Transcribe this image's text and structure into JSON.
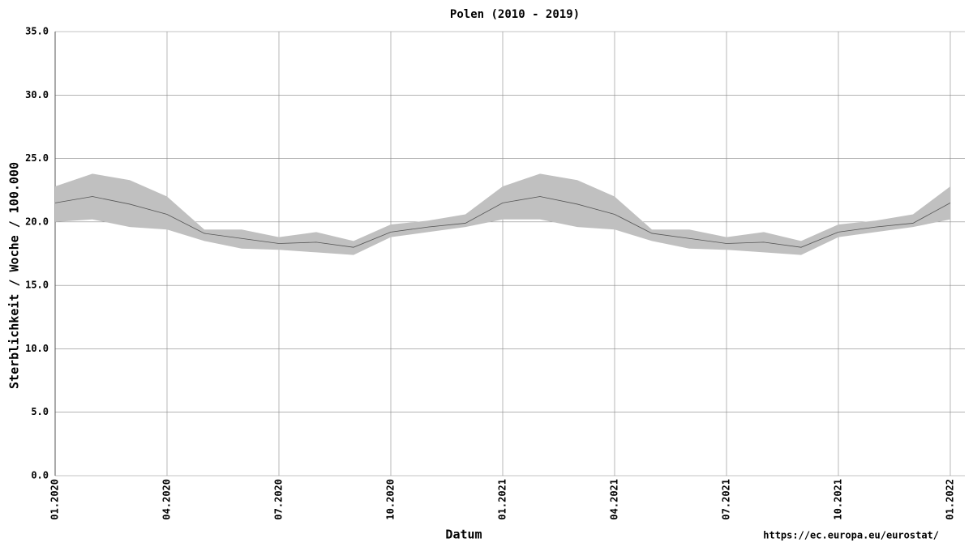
{
  "chart_data": {
    "type": "line",
    "title": "Polen (2010 - 2019)",
    "x_label": "Datum",
    "y_label": "Sterblichkeit / Woche / 100.000",
    "source": "https://ec.europa.eu/eurostat/",
    "categories": [
      "01.2020",
      null,
      null,
      "04.2020",
      null,
      null,
      "07.2020",
      null,
      null,
      "10.2020",
      null,
      null,
      "01.2021",
      null,
      null,
      "04.2021",
      null,
      null,
      "07.2021",
      null,
      null,
      "10.2021",
      null,
      null,
      "01.2022"
    ],
    "series": [
      {
        "color": "#555555",
        "values": [
          21.5,
          22.0,
          21.4,
          20.6,
          19.1,
          18.7,
          18.3,
          18.4,
          18.0,
          19.2,
          19.6,
          19.9,
          21.5,
          22.0,
          21.4,
          20.6,
          19.1,
          18.7,
          18.3,
          18.4,
          18.0,
          19.2,
          19.6,
          19.9,
          21.5
        ]
      }
    ],
    "band": {
      "color": "#c0c0c0",
      "lower": [
        20.0,
        20.2,
        19.6,
        19.4,
        18.5,
        17.9,
        17.8,
        17.6,
        17.4,
        18.8,
        19.2,
        19.6,
        20.2,
        20.2,
        19.6,
        19.4,
        18.5,
        17.9,
        17.8,
        17.6,
        17.4,
        18.8,
        19.2,
        19.6,
        20.2
      ],
      "upper": [
        22.8,
        23.8,
        23.3,
        22.0,
        19.4,
        19.4,
        18.8,
        19.2,
        18.5,
        19.8,
        20.1,
        20.6,
        22.8,
        23.8,
        23.3,
        22.0,
        19.4,
        19.4,
        18.8,
        19.2,
        18.5,
        19.8,
        20.1,
        20.6,
        22.8
      ]
    },
    "ylim": [
      0,
      35
    ],
    "yticks": [
      {
        "value": 0,
        "label": "0.0"
      },
      {
        "value": 5,
        "label": "5.0"
      },
      {
        "value": 10,
        "label": "10.0"
      },
      {
        "value": 15,
        "label": "15.0"
      },
      {
        "value": 20,
        "label": "20.0"
      },
      {
        "value": 25,
        "label": "25.0"
      },
      {
        "value": 30,
        "label": "30.0"
      },
      {
        "value": 35,
        "label": "35.0"
      }
    ],
    "grid": true
  }
}
